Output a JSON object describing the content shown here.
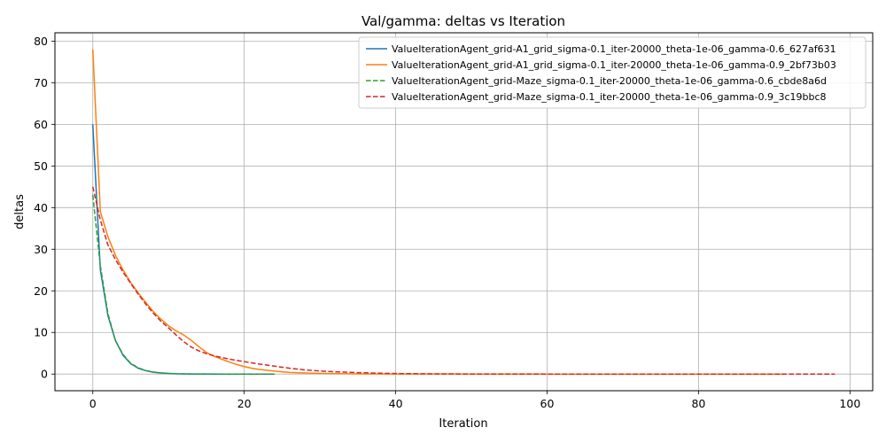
{
  "chart_data": {
    "type": "line",
    "title": "Val/gamma: deltas vs Iteration",
    "xlabel": "Iteration",
    "ylabel": "deltas",
    "xlim": [
      -5,
      103
    ],
    "ylim": [
      -4,
      82
    ],
    "xticks": [
      0,
      20,
      40,
      60,
      80,
      100
    ],
    "yticks": [
      0,
      10,
      20,
      30,
      40,
      50,
      60,
      70,
      80
    ],
    "grid": true,
    "legend_position": "top-right",
    "series": [
      {
        "name": "ValueIterationAgent_grid-A1_grid_sigma-0.1_iter-20000_theta-1e-06_gamma-0.6_627af631",
        "color": "#1f77b4",
        "dash": "solid",
        "x": [
          0,
          1,
          2,
          3,
          4,
          5,
          6,
          7,
          8,
          9,
          10,
          11,
          12,
          13,
          14,
          15,
          16,
          17,
          18,
          19,
          20,
          21,
          22,
          23,
          24
        ],
        "y": [
          60,
          25,
          14,
          8,
          4.5,
          2.5,
          1.4,
          0.8,
          0.45,
          0.25,
          0.15,
          0.08,
          0.05,
          0.03,
          0.02,
          0.01,
          0.005,
          0.003,
          0.002,
          0.001,
          0.0006,
          0.0004,
          0.0002,
          0.0001,
          5e-05
        ]
      },
      {
        "name": "ValueIterationAgent_grid-A1_grid_sigma-0.1_iter-20000_theta-1e-06_gamma-0.9_2bf73b03",
        "color": "#ff7f0e",
        "dash": "solid",
        "x": [
          0,
          1,
          2,
          3,
          4,
          5,
          6,
          7,
          8,
          9,
          10,
          11,
          12,
          13,
          14,
          15,
          16,
          17,
          18,
          19,
          20,
          21,
          22,
          24,
          26,
          28,
          30,
          35,
          40,
          45,
          50,
          60,
          70,
          80,
          91
        ],
        "y": [
          78,
          39,
          33,
          28.5,
          25,
          22,
          19.5,
          17.2,
          15,
          13.2,
          11.6,
          10.4,
          9.4,
          8.1,
          6.6,
          5.2,
          4.3,
          3.6,
          2.9,
          2.3,
          1.8,
          1.4,
          1.1,
          0.7,
          0.4,
          0.25,
          0.15,
          0.05,
          0.02,
          0.01,
          0.005,
          0.001,
          0.0002,
          5e-05,
          1e-05
        ]
      },
      {
        "name": "ValueIterationAgent_grid-Maze_sigma-0.1_iter-20000_theta-1e-06_gamma-0.6_cbde8a6d",
        "color": "#2ca02c",
        "dash": "dashed",
        "x": [
          0,
          1,
          2,
          3,
          4,
          5,
          6,
          7,
          8,
          9,
          10,
          11,
          12,
          13,
          14,
          15,
          16,
          17,
          18,
          19,
          20,
          21,
          22,
          23,
          24
        ],
        "y": [
          43,
          26,
          14.5,
          8,
          4.7,
          2.6,
          1.5,
          0.85,
          0.5,
          0.28,
          0.16,
          0.09,
          0.05,
          0.03,
          0.02,
          0.01,
          0.006,
          0.003,
          0.002,
          0.001,
          0.0006,
          0.0004,
          0.0002,
          0.0001,
          5e-05
        ]
      },
      {
        "name": "ValueIterationAgent_grid-Maze_sigma-0.1_iter-20000_theta-1e-06_gamma-0.9_3c19bbc8",
        "color": "#d62728",
        "dash": "dashed",
        "x": [
          0,
          1,
          2,
          3,
          4,
          5,
          6,
          7,
          8,
          9,
          10,
          11,
          12,
          13,
          14,
          15,
          16,
          17,
          18,
          19,
          20,
          22,
          24,
          26,
          28,
          30,
          32,
          35,
          38,
          40,
          45,
          50,
          60,
          70,
          80,
          90,
          98
        ],
        "y": [
          45,
          37,
          31,
          27.5,
          24.5,
          21.8,
          19.2,
          16.8,
          14.6,
          12.7,
          11.1,
          9.4,
          7.8,
          6.5,
          5.6,
          4.9,
          4.4,
          4.0,
          3.6,
          3.3,
          3.0,
          2.4,
          1.9,
          1.4,
          1.0,
          0.75,
          0.55,
          0.35,
          0.2,
          0.12,
          0.05,
          0.02,
          0.005,
          0.001,
          0.0003,
          0.0001,
          3e-05
        ]
      }
    ]
  }
}
